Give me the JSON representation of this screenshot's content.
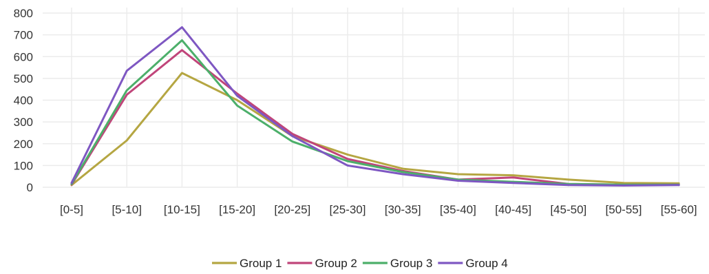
{
  "chart_data": {
    "type": "line",
    "title": "",
    "xlabel": "",
    "ylabel": "",
    "categories": [
      "[0-5]",
      "[5-10]",
      "[10-15]",
      "[15-20]",
      "[20-25]",
      "[25-30]",
      "[30-35]",
      "[35-40]",
      "[40-45]",
      "[45-50]",
      "[50-55]",
      "[55-60]"
    ],
    "ylim": [
      0,
      800
    ],
    "yticks": [
      0,
      100,
      200,
      300,
      400,
      500,
      600,
      700,
      800
    ],
    "grid": true,
    "legend_position": "bottom",
    "series": [
      {
        "name": "Group 1",
        "color": "#b5a642",
        "values": [
          10,
          215,
          525,
          400,
          235,
          150,
          85,
          60,
          55,
          35,
          20,
          18
        ]
      },
      {
        "name": "Group 2",
        "color": "#c0457a",
        "values": [
          12,
          425,
          630,
          430,
          245,
          130,
          75,
          35,
          45,
          15,
          12,
          12
        ]
      },
      {
        "name": "Group 3",
        "color": "#4caf6a",
        "values": [
          15,
          445,
          675,
          375,
          210,
          120,
          70,
          35,
          25,
          15,
          12,
          12
        ]
      },
      {
        "name": "Group 4",
        "color": "#7e57c2",
        "values": [
          20,
          535,
          735,
          420,
          235,
          100,
          60,
          30,
          20,
          10,
          8,
          10
        ]
      }
    ]
  }
}
